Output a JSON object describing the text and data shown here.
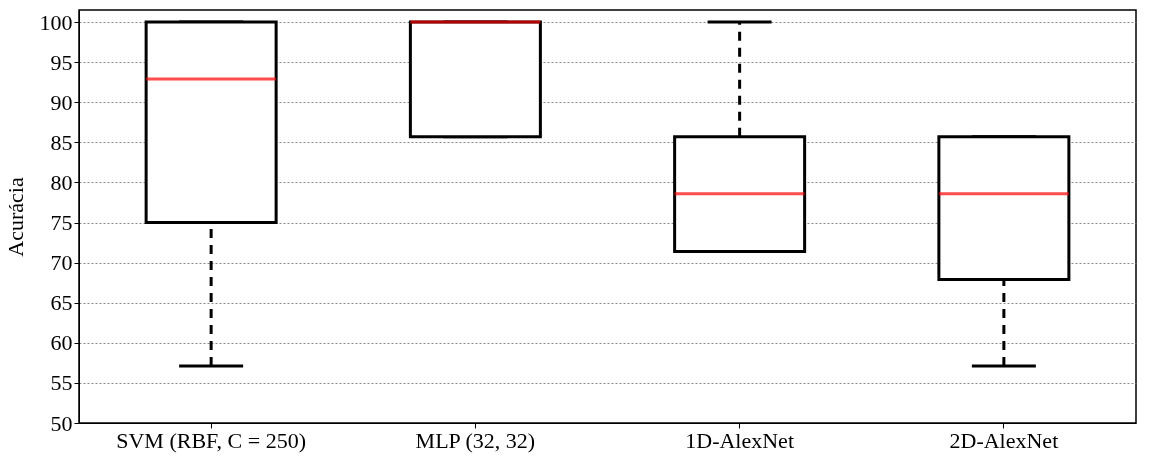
{
  "chart_data": {
    "type": "box",
    "ylabel": "Acurácia",
    "categories": [
      "SVM (RBF, C = 250)",
      "MLP (32, 32)",
      "1D-AlexNet",
      "2D-AlexNet"
    ],
    "boxes": [
      {
        "low": 57.1,
        "q1": 75,
        "median": 92.9,
        "q3": 100,
        "high": 100
      },
      {
        "low": 85.7,
        "q1": 85.7,
        "median": 100,
        "q3": 100,
        "high": 100
      },
      {
        "low": 71.4,
        "q1": 71.4,
        "median": 78.6,
        "q3": 85.7,
        "high": 100
      },
      {
        "low": 57.1,
        "q1": 67.9,
        "median": 78.6,
        "q3": 85.7,
        "high": 85.7
      }
    ],
    "ylim": [
      50,
      101.5
    ],
    "yticks": [
      50,
      55,
      60,
      65,
      70,
      75,
      80,
      85,
      90,
      95,
      100
    ],
    "grid": "y"
  }
}
